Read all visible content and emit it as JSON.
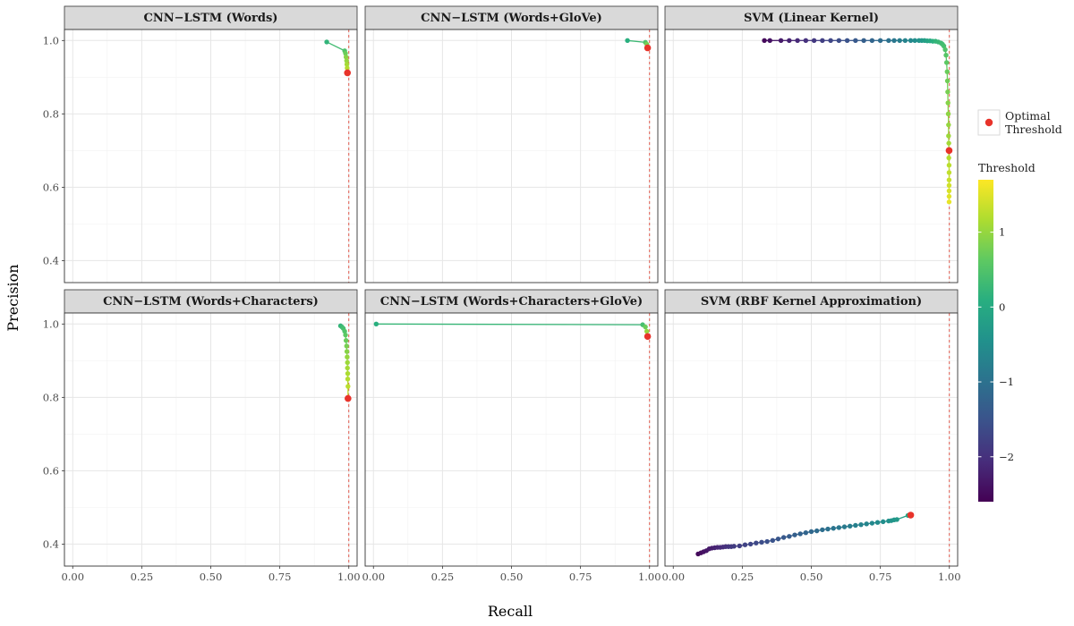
{
  "chart_data": {
    "type": "scatter",
    "xlabel": "Recall",
    "ylabel": "Precision",
    "xlim": [
      -0.03,
      1.03
    ],
    "ylim": [
      0.34,
      1.03
    ],
    "x_ticks": [
      0.0,
      0.25,
      0.5,
      0.75,
      1.0
    ],
    "x_tick_labels": [
      "0.00",
      "0.25",
      "0.50",
      "0.75",
      "1.00"
    ],
    "y_ticks": [
      0.4,
      0.6,
      0.8,
      1.0
    ],
    "y_tick_labels": [
      "0.4",
      "0.6",
      "0.8",
      "1.0"
    ],
    "reference_line": {
      "axis": "x",
      "value": 1.0,
      "style": "dashed",
      "color": "#e04a3c"
    },
    "grid": true,
    "legend": {
      "placement": "right",
      "optimal_label_line1": "Optimal",
      "optimal_label_line2": "Threshold",
      "optimal_color": "#e8332a",
      "colorbar_title": "Threshold",
      "colorbar_range": [
        -2.6,
        1.7
      ],
      "colorbar_ticks": [
        1,
        0,
        -1,
        -2
      ],
      "colorbar_tick_labels": [
        "1",
        "0",
        "−1",
        "−2"
      ]
    },
    "panels": [
      {
        "title": "CNN−LSTM (Words)",
        "x": [
          0.92,
          0.985,
          0.988,
          0.99,
          0.992,
          0.993,
          0.994,
          0.995
        ],
        "y": [
          0.996,
          0.972,
          0.965,
          0.955,
          0.945,
          0.935,
          0.925,
          0.912
        ],
        "threshold": [
          0.2,
          0.5,
          0.7,
          0.9,
          1.0,
          1.1,
          1.2,
          1.3
        ],
        "optimal": {
          "x": 0.995,
          "y": 0.912
        }
      },
      {
        "title": "CNN−LSTM (Words+GloVe)",
        "x": [
          0.92,
          0.985,
          0.99,
          0.993
        ],
        "y": [
          1.0,
          0.995,
          0.99,
          0.98
        ],
        "threshold": [
          0.1,
          0.5,
          0.8,
          1.2
        ],
        "optimal": {
          "x": 0.993,
          "y": 0.98
        }
      },
      {
        "title": "SVM (Linear Kernel)",
        "x": [
          0.33,
          0.35,
          0.39,
          0.42,
          0.45,
          0.48,
          0.51,
          0.54,
          0.57,
          0.6,
          0.63,
          0.66,
          0.69,
          0.72,
          0.75,
          0.78,
          0.8,
          0.82,
          0.84,
          0.86,
          0.875,
          0.89,
          0.9,
          0.91,
          0.92,
          0.93,
          0.94,
          0.95,
          0.96,
          0.97,
          0.975,
          0.98,
          0.985,
          0.988,
          0.99,
          0.992,
          0.993,
          0.994,
          0.995,
          0.996,
          0.997,
          0.997,
          0.998,
          0.998,
          0.998,
          0.999,
          0.999,
          0.999,
          0.999,
          0.999,
          0.999,
          0.999
        ],
        "y": [
          1.0,
          1.0,
          1.0,
          1.0,
          1.0,
          1.0,
          1.0,
          1.0,
          1.0,
          1.0,
          1.0,
          1.0,
          1.0,
          1.0,
          1.0,
          1.0,
          1.0,
          1.0,
          1.0,
          1.0,
          1.0,
          1.0,
          1.0,
          1.0,
          0.999,
          0.999,
          0.998,
          0.998,
          0.996,
          0.993,
          0.99,
          0.985,
          0.975,
          0.96,
          0.94,
          0.915,
          0.89,
          0.86,
          0.83,
          0.8,
          0.77,
          0.74,
          0.72,
          0.7,
          0.68,
          0.66,
          0.64,
          0.62,
          0.605,
          0.59,
          0.575,
          0.56
        ],
        "threshold": [
          -2.5,
          -2.4,
          -2.3,
          -2.2,
          -2.1,
          -2.0,
          -1.9,
          -1.8,
          -1.7,
          -1.6,
          -1.5,
          -1.4,
          -1.3,
          -1.2,
          -1.1,
          -1.0,
          -0.9,
          -0.8,
          -0.7,
          -0.6,
          -0.5,
          -0.4,
          -0.3,
          -0.2,
          -0.1,
          0.0,
          0.1,
          0.2,
          0.25,
          0.3,
          0.35,
          0.4,
          0.5,
          0.55,
          0.6,
          0.7,
          0.75,
          0.8,
          0.9,
          0.95,
          1.0,
          1.05,
          1.1,
          1.15,
          1.2,
          1.25,
          1.3,
          1.35,
          1.4,
          1.45,
          1.5,
          1.55
        ],
        "optimal": {
          "x": 0.999,
          "y": 0.7
        }
      },
      {
        "title": "CNN−LSTM (Words+Characters)",
        "x": [
          0.97,
          0.975,
          0.98,
          0.985,
          0.988,
          0.99,
          0.992,
          0.993,
          0.994,
          0.995,
          0.995,
          0.996,
          0.996,
          0.997,
          0.997
        ],
        "y": [
          0.995,
          0.992,
          0.988,
          0.98,
          0.97,
          0.955,
          0.94,
          0.925,
          0.91,
          0.895,
          0.88,
          0.865,
          0.85,
          0.83,
          0.797
        ],
        "threshold": [
          0.2,
          0.3,
          0.4,
          0.5,
          0.6,
          0.7,
          0.8,
          0.9,
          1.0,
          1.05,
          1.1,
          1.15,
          1.2,
          1.25,
          1.3
        ],
        "optimal": {
          "x": 0.997,
          "y": 0.797
        }
      },
      {
        "title": "CNN−LSTM (Words+Characters+GloVe)",
        "x": [
          0.01,
          0.975,
          0.985,
          0.99,
          0.993
        ],
        "y": [
          1.0,
          0.998,
          0.992,
          0.98,
          0.966
        ],
        "threshold": [
          0.1,
          0.4,
          0.7,
          1.0,
          1.3
        ],
        "optimal": {
          "x": 0.993,
          "y": 0.966
        }
      },
      {
        "title": "SVM (RBF Kernel Approximation)",
        "x": [
          0.09,
          0.1,
          0.11,
          0.12,
          0.13,
          0.14,
          0.15,
          0.16,
          0.17,
          0.18,
          0.19,
          0.2,
          0.21,
          0.22,
          0.24,
          0.26,
          0.28,
          0.3,
          0.32,
          0.34,
          0.36,
          0.38,
          0.4,
          0.42,
          0.44,
          0.46,
          0.48,
          0.5,
          0.52,
          0.54,
          0.56,
          0.58,
          0.6,
          0.62,
          0.64,
          0.66,
          0.68,
          0.7,
          0.72,
          0.74,
          0.76,
          0.78,
          0.79,
          0.8,
          0.81,
          0.85,
          0.86
        ],
        "y": [
          0.373,
          0.376,
          0.379,
          0.382,
          0.387,
          0.389,
          0.39,
          0.391,
          0.391,
          0.392,
          0.393,
          0.393,
          0.393,
          0.394,
          0.395,
          0.398,
          0.4,
          0.403,
          0.405,
          0.407,
          0.41,
          0.414,
          0.418,
          0.421,
          0.425,
          0.428,
          0.431,
          0.434,
          0.436,
          0.439,
          0.441,
          0.443,
          0.445,
          0.447,
          0.449,
          0.451,
          0.453,
          0.455,
          0.457,
          0.459,
          0.461,
          0.463,
          0.464,
          0.466,
          0.467,
          0.478,
          0.479
        ],
        "threshold": [
          -2.5,
          -2.45,
          -2.4,
          -2.35,
          -2.3,
          -2.25,
          -2.2,
          -2.15,
          -2.1,
          -2.05,
          -2.0,
          -1.95,
          -1.9,
          -1.85,
          -1.8,
          -1.75,
          -1.7,
          -1.65,
          -1.6,
          -1.55,
          -1.5,
          -1.45,
          -1.4,
          -1.35,
          -1.3,
          -1.25,
          -1.2,
          -1.15,
          -1.1,
          -1.05,
          -1.0,
          -0.95,
          -0.9,
          -0.85,
          -0.8,
          -0.75,
          -0.7,
          -0.65,
          -0.6,
          -0.55,
          -0.5,
          -0.45,
          -0.4,
          -0.35,
          -0.3,
          -0.1,
          0.0
        ],
        "optimal": {
          "x": 0.86,
          "y": 0.479
        }
      }
    ]
  }
}
